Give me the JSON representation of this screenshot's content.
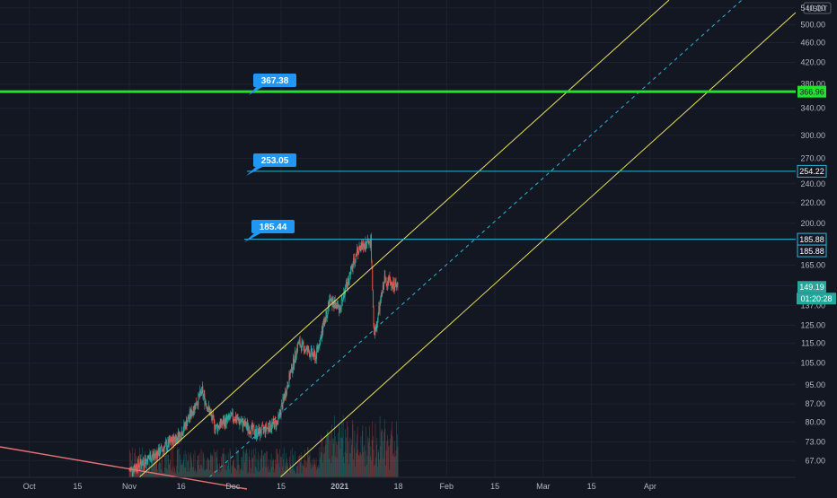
{
  "currency": "USDT",
  "colors": {
    "background": "#131722",
    "grid": "#1e2230",
    "axis_text": "#b2b5be",
    "up": "#26a69a",
    "down": "#ef5350",
    "channel": "#e8e05a",
    "hline_green": "#22e22e",
    "hline_cyan": "#2ab7d6",
    "callout": "#2196f3",
    "trendline": "#e57373",
    "last_price_tag": "#26a69a"
  },
  "x_axis": {
    "labels": [
      "Oct",
      "15",
      "Nov",
      "16",
      "Dec",
      "15",
      "2021",
      "18",
      "Feb",
      "15",
      "Mar",
      "15",
      "Apr"
    ]
  },
  "y_axis": {
    "ticks": [
      "540.00",
      "500.00",
      "460.00",
      "420.00",
      "380.00",
      "340.00",
      "300.00",
      "270.00",
      "240.00",
      "220.00",
      "200.00",
      "185.00",
      "165.00",
      "150.00",
      "137.00",
      "125.00",
      "115.00",
      "105.00",
      "95.00",
      "87.00",
      "80.00",
      "73.00",
      "67.00"
    ],
    "tags": [
      {
        "label": "366.96",
        "value": 366.96,
        "style": "green"
      },
      {
        "label": "254.22",
        "value": 254.22,
        "style": "cyan"
      },
      {
        "label": "185.88",
        "value": 185.88,
        "style": "cyan"
      },
      {
        "label": "185.88",
        "value": 185.88,
        "style": "cyan-below"
      },
      {
        "label": "149.19",
        "value": 149.19,
        "style": "last"
      },
      {
        "label": "01:20:28",
        "value": 0,
        "style": "countdown"
      }
    ]
  },
  "callouts": [
    {
      "label": "367.38",
      "value": 367.38
    },
    {
      "label": "253.05",
      "value": 253.05
    },
    {
      "label": "185.44",
      "value": 185.44
    }
  ],
  "chart_data": {
    "type": "line",
    "series_type": "candlestick",
    "scale": "log",
    "y_range": [
      62,
      560
    ],
    "horizontal_levels": [
      367.38,
      253.05,
      185.44
    ],
    "parallel_channel": "ascending",
    "approx_closes": [
      {
        "x": "Nov 1",
        "y": 64
      },
      {
        "x": "Nov 10",
        "y": 70
      },
      {
        "x": "Nov 16",
        "y": 76
      },
      {
        "x": "Nov 22",
        "y": 92
      },
      {
        "x": "Nov 26",
        "y": 78
      },
      {
        "x": "Dec 1",
        "y": 82
      },
      {
        "x": "Dec 8",
        "y": 76
      },
      {
        "x": "Dec 14",
        "y": 80
      },
      {
        "x": "Dec 20",
        "y": 115
      },
      {
        "x": "Dec 25",
        "y": 108
      },
      {
        "x": "Dec 29",
        "y": 140
      },
      {
        "x": "Jan 1",
        "y": 135
      },
      {
        "x": "Jan 6",
        "y": 176
      },
      {
        "x": "Jan 10",
        "y": 185
      },
      {
        "x": "Jan 11",
        "y": 118
      },
      {
        "x": "Jan 14",
        "y": 155
      },
      {
        "x": "Jan 18",
        "y": 149.19
      }
    ]
  }
}
